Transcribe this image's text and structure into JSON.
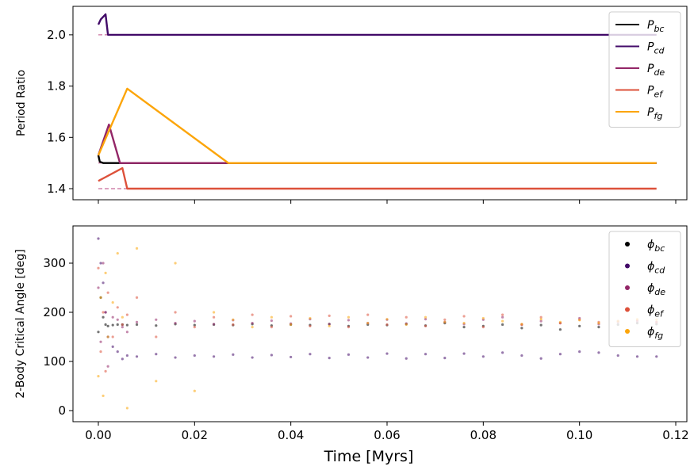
{
  "chart_data": [
    {
      "type": "line",
      "ylabel": "Period Ratio",
      "xlim": [
        -0.005,
        0.121
      ],
      "ylim": [
        1.38,
        2.1
      ],
      "yticks": [
        "1.4",
        "1.6",
        "1.8",
        "2.0"
      ],
      "xticks": [
        0.0,
        0.02,
        0.04,
        0.06,
        0.08,
        0.1,
        0.12
      ],
      "legend_position": "top-right",
      "reference_lines": [
        2.0,
        1.5,
        1.4
      ],
      "series": [
        {
          "name": "P_bc",
          "label_main": "P",
          "label_sub": "bc",
          "color": "#000000",
          "x": [
            0,
            0.0003,
            0.001,
            0.116
          ],
          "y": [
            1.53,
            1.505,
            1.5,
            1.5
          ]
        },
        {
          "name": "P_cd",
          "label_main": "P",
          "label_sub": "cd",
          "color": "#420a68",
          "x": [
            0,
            0.0005,
            0.0015,
            0.002,
            0.116
          ],
          "y": [
            2.04,
            2.06,
            2.08,
            2.0,
            2.0
          ]
        },
        {
          "name": "P_de",
          "label_main": "P",
          "label_sub": "de",
          "color": "#932667",
          "x": [
            0,
            0.0022,
            0.0045,
            0.116
          ],
          "y": [
            1.53,
            1.65,
            1.5,
            1.5
          ]
        },
        {
          "name": "P_ef",
          "label_main": "P",
          "label_sub": "ef",
          "color": "#dd513a",
          "x": [
            0,
            0.005,
            0.006,
            0.116
          ],
          "y": [
            1.43,
            1.48,
            1.4,
            1.4
          ]
        },
        {
          "name": "P_fg",
          "label_main": "P",
          "label_sub": "fg",
          "color": "#fca50a",
          "x": [
            0,
            0.006,
            0.027,
            0.116
          ],
          "y": [
            1.53,
            1.79,
            1.5,
            1.5
          ]
        }
      ]
    },
    {
      "type": "scatter",
      "xlabel": "Time [Myrs]",
      "ylabel": "2-Body Critical Angle [deg]",
      "xlim": [
        -0.005,
        0.121
      ],
      "ylim": [
        -15,
        375
      ],
      "yticks": [
        "0",
        "100",
        "200",
        "300"
      ],
      "xticks": [
        "0.00",
        "0.02",
        "0.04",
        "0.06",
        "0.08",
        "0.10",
        "0.12"
      ],
      "legend_position": "top-right",
      "x": [
        0,
        0.0005,
        0.001,
        0.0015,
        0.002,
        0.003,
        0.004,
        0.005,
        0.006,
        0.008,
        0.012,
        0.016,
        0.02,
        0.024,
        0.028,
        0.032,
        0.036,
        0.04,
        0.044,
        0.048,
        0.052,
        0.056,
        0.06,
        0.064,
        0.068,
        0.072,
        0.076,
        0.08,
        0.084,
        0.088,
        0.092,
        0.096,
        0.1,
        0.104,
        0.108,
        0.112,
        0.116
      ],
      "series": [
        {
          "name": "phi_bc",
          "label_main": "ϕ",
          "label_sub": "bc",
          "color": "#000000",
          "y": [
            160,
            230,
            190,
            175,
            172,
            174,
            175,
            175,
            174,
            175,
            173,
            176,
            174,
            175,
            174,
            176,
            173,
            175,
            174,
            176,
            172,
            175,
            174,
            176,
            173,
            178,
            170,
            172,
            175,
            168,
            174,
            165,
            172,
            170,
            175,
            178,
            176
          ]
        },
        {
          "name": "phi_cd",
          "label_main": "ϕ",
          "label_sub": "cd",
          "color": "#420a68",
          "y": [
            350,
            300,
            260,
            200,
            150,
            130,
            120,
            105,
            112,
            110,
            115,
            108,
            112,
            110,
            114,
            108,
            113,
            109,
            115,
            107,
            114,
            108,
            116,
            106,
            115,
            107,
            116,
            110,
            118,
            112,
            106,
            115,
            120,
            118,
            112,
            110,
            110
          ]
        },
        {
          "name": "phi_de",
          "label_main": "ϕ",
          "label_sub": "de",
          "color": "#932667",
          "y": [
            250,
            140,
            300,
            200,
            90,
            190,
            185,
            170,
            160,
            180,
            185,
            178,
            182,
            176,
            184,
            178,
            183,
            177,
            186,
            176,
            184,
            178,
            185,
            177,
            186,
            180,
            176,
            185,
            190,
            175,
            182,
            178,
            188,
            176,
            180,
            182,
            180
          ]
        },
        {
          "name": "phi_ef",
          "label_main": "ϕ",
          "label_sub": "ef",
          "color": "#dd513a",
          "y": [
            290,
            120,
            200,
            80,
            240,
            150,
            210,
            175,
            195,
            230,
            150,
            200,
            170,
            190,
            175,
            195,
            170,
            192,
            172,
            193,
            170,
            195,
            175,
            190,
            172,
            185,
            192,
            170,
            195,
            175,
            190,
            178,
            185,
            180,
            182,
            184,
            180
          ]
        },
        {
          "name": "phi_fg",
          "label_main": "ϕ",
          "label_sub": "fg",
          "color": "#fca50a",
          "y": [
            70,
            230,
            30,
            280,
            150,
            220,
            320,
            190,
            5,
            330,
            60,
            300,
            40,
            200,
            185,
            170,
            190,
            175,
            188,
            172,
            190,
            178,
            186,
            175,
            190,
            180,
            178,
            188,
            182,
            176,
            186,
            180,
            184,
            178,
            182,
            186,
            185
          ]
        }
      ]
    }
  ]
}
